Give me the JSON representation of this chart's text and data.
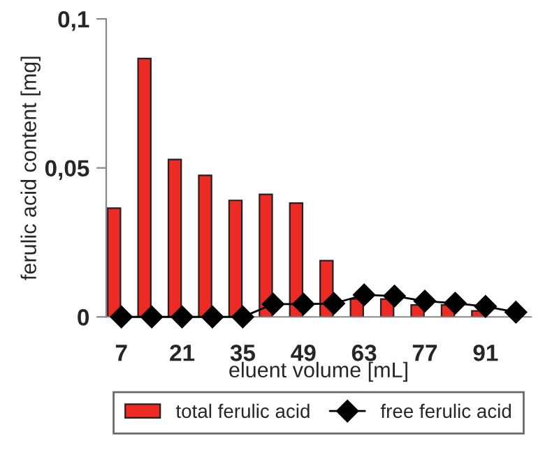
{
  "chart_data": {
    "type": "bar",
    "xlabel": "eluent volume [mL]",
    "ylabel": "ferulic acid content [mg]",
    "categories": [
      "7",
      null,
      "21",
      null,
      "35",
      null,
      "49",
      null,
      "63",
      null,
      "77",
      null,
      "91",
      null
    ],
    "series": [
      {
        "name": "total ferulic acid",
        "color": "#ee2a24",
        "values": [
          0.0365,
          0.0867,
          0.0528,
          0.0475,
          0.0391,
          0.0411,
          0.0382,
          0.0189,
          0.006,
          0.006,
          0.004,
          0.004,
          0.002,
          null
        ]
      },
      {
        "name": "free ferulic acid",
        "type": "line",
        "color": "#000000",
        "marker": "diamond",
        "values": [
          0,
          0,
          0,
          0,
          0,
          0.0043,
          0.0043,
          0.0045,
          0.0074,
          0.007,
          0.0053,
          0.0046,
          0.0035,
          0.0016
        ]
      }
    ],
    "ylim": [
      0,
      0.1
    ],
    "yticks": [
      {
        "value": 0,
        "label": "0"
      },
      {
        "value": 0.05,
        "label": "0,05"
      },
      {
        "value": 0.1,
        "label": "0,1"
      }
    ],
    "grid": false,
    "legend": "bottom"
  }
}
